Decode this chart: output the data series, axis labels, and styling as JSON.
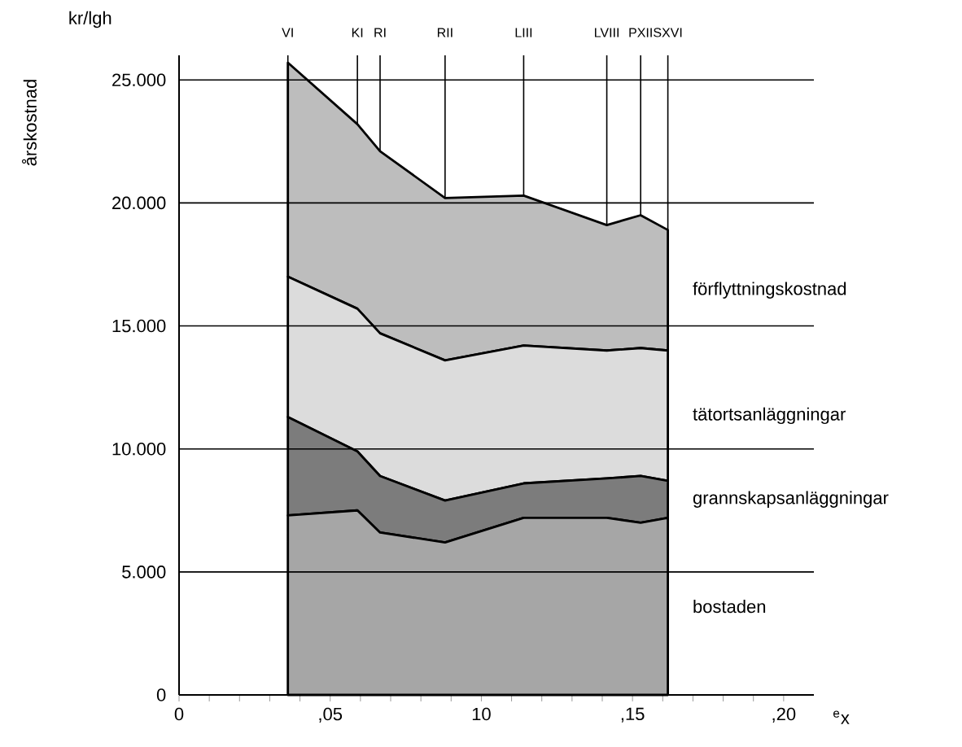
{
  "chart_data": {
    "type": "area",
    "stacked": true,
    "ylabel": "årskostnad",
    "xlabel": "$^{e}$x",
    "annotations": [
      "kr/lgh"
    ],
    "x": [
      3.6,
      5.9,
      6.65,
      8.8,
      11.4,
      14.15,
      15.27,
      16.17
    ],
    "series": [
      {
        "name": "bostaden",
        "color": "#a6a6a6",
        "values": [
          7300,
          7500,
          6600,
          6200,
          7200,
          7200,
          7000,
          7200
        ]
      },
      {
        "name": "grannskapsanläggningar",
        "color": "#7c7c7c",
        "values": [
          4000,
          2400,
          2300,
          1700,
          1400,
          1600,
          1900,
          1500
        ]
      },
      {
        "name": "tätortsanläggningar",
        "color": "#dcdcdc",
        "values": [
          5700,
          5800,
          5800,
          5700,
          5600,
          5200,
          5200,
          5300
        ]
      },
      {
        "name": "förflyttningskostnad",
        "color": "#bdbdbd",
        "values": [
          8700,
          7500,
          7400,
          6600,
          6100,
          5100,
          5400,
          4900
        ]
      }
    ],
    "xlim": [
      0,
      21
    ],
    "xticks": [
      0,
      {
        "value": 1,
        "label": null
      },
      {
        "value": 2,
        "label": null
      },
      {
        "value": 3,
        "label": null
      },
      {
        "value": 4,
        "label": null
      },
      {
        "value": 5,
        "label": ",05"
      },
      {
        "value": 6,
        "label": null
      },
      {
        "value": 7,
        "label": null
      },
      {
        "value": 8,
        "label": null
      },
      {
        "value": 9,
        "label": null
      },
      10,
      {
        "value": 11,
        "label": null
      },
      {
        "value": 12,
        "label": null
      },
      {
        "value": 13,
        "label": null
      },
      {
        "value": 14,
        "label": null
      },
      {
        "value": 15,
        "label": ",15"
      },
      {
        "value": 16,
        "label": null
      },
      {
        "value": 17,
        "label": null
      },
      {
        "value": 18,
        "label": null
      },
      {
        "value": 19,
        "label": null
      },
      {
        "value": 20,
        "label": ",20"
      }
    ],
    "ref_lines": [
      {
        "axis": "x",
        "value": 3.6,
        "label": "VI"
      },
      {
        "axis": "x",
        "value": 5.9,
        "label": "KI"
      },
      {
        "axis": "x",
        "value": 6.65,
        "label": "RI"
      },
      {
        "axis": "x",
        "value": 8.8,
        "label": "RII"
      },
      {
        "axis": "x",
        "value": 11.4,
        "label": "LIII"
      },
      {
        "axis": "x",
        "value": 14.15,
        "label": "LVIII"
      },
      {
        "axis": "x",
        "value": 15.27,
        "label": "PXII"
      },
      {
        "axis": "x",
        "value": 16.17,
        "label": "SXVI"
      }
    ],
    "ylim": [
      0,
      26000
    ],
    "yticks": [
      0,
      {
        "value": 5000,
        "label": "5.000"
      },
      {
        "value": 10000,
        "label": "10.000"
      },
      {
        "value": 15000,
        "label": "15.000"
      },
      {
        "value": 20000,
        "label": "20.000"
      },
      {
        "value": 25000,
        "label": "25.000"
      }
    ],
    "grid": "y"
  }
}
